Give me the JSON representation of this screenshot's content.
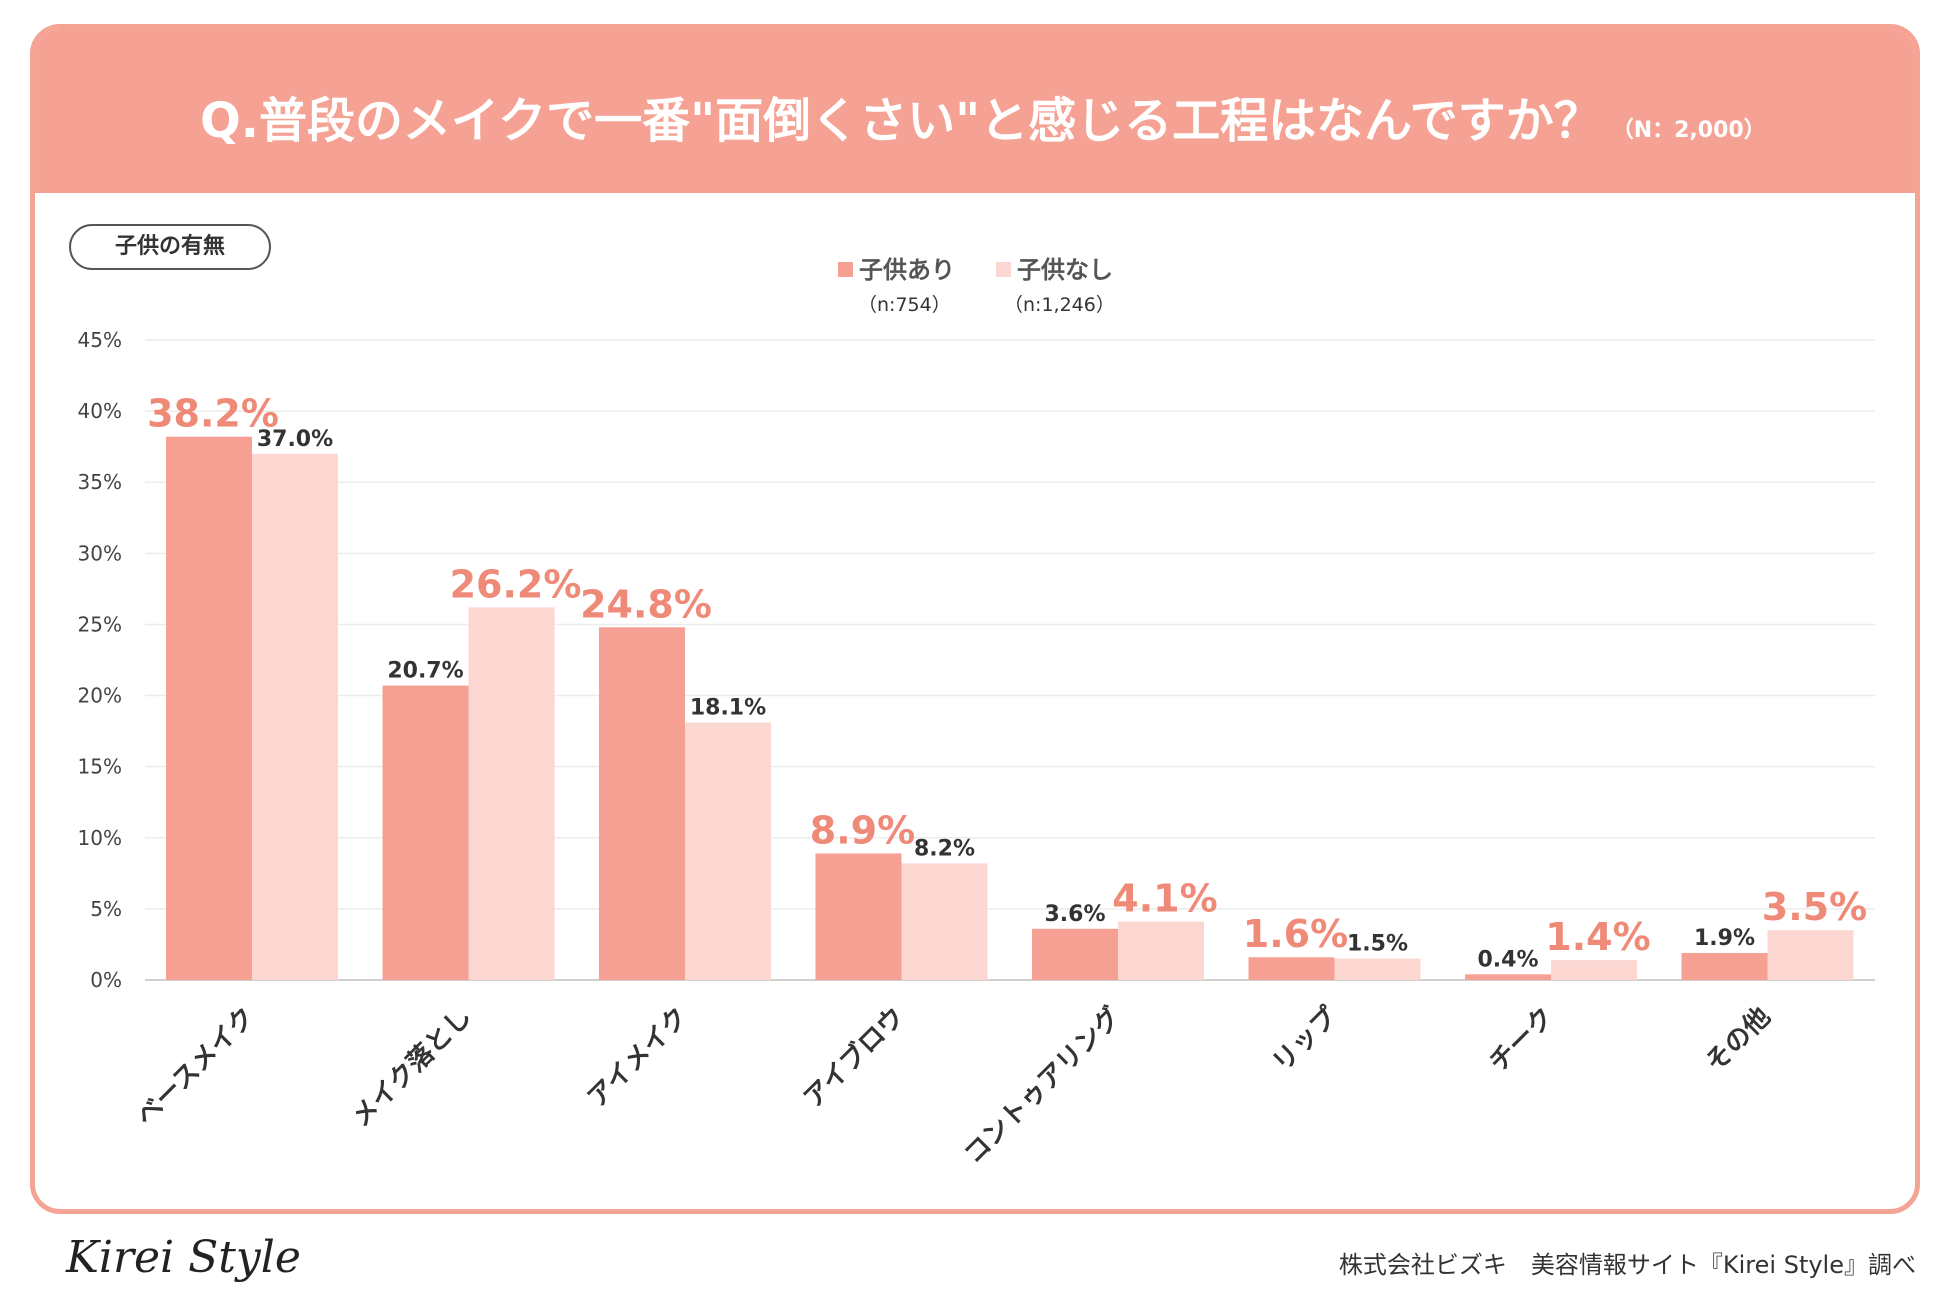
{
  "header": {
    "question": "Q.普段のメイクで一番\"面倒くさい\"と感じる工程はなんですか？",
    "sample_size": "（N：2,000）"
  },
  "filter_label": "子供の有無",
  "colors": {
    "series1": "#f5a092",
    "series2": "#fcd6d1",
    "highlight": "#f08a78",
    "header": "#f5a193"
  },
  "legend": [
    {
      "label": "子供あり",
      "n": "（n:754）"
    },
    {
      "label": "子供なし",
      "n": "（n:1,246）"
    }
  ],
  "chart_data": {
    "type": "bar",
    "title": "Q.普段のメイクで一番\"面倒くさい\"と感じる工程はなんですか？",
    "xlabel": "",
    "ylabel": "",
    "ylim": [
      0,
      45
    ],
    "yticks": [
      "0%",
      "5%",
      "10%",
      "15%",
      "20%",
      "25%",
      "30%",
      "35%",
      "40%",
      "45%"
    ],
    "categories": [
      "ベースメイク",
      "メイク落とし",
      "アイメイク",
      "アイブロウ",
      "コントゥアリング",
      "リップ",
      "チーク",
      "その他"
    ],
    "series": [
      {
        "name": "子供あり",
        "values": [
          38.2,
          20.7,
          24.8,
          8.9,
          3.6,
          1.6,
          0.4,
          1.9
        ],
        "labels": [
          "38.2%",
          "20.7%",
          "24.8%",
          "8.9%",
          "3.6%",
          "1.6%",
          "0.4%",
          "1.9%"
        ]
      },
      {
        "name": "子供なし",
        "values": [
          37.0,
          26.2,
          18.1,
          8.2,
          4.1,
          1.5,
          1.4,
          3.5
        ],
        "labels": [
          "37.0%",
          "26.2%",
          "18.1%",
          "8.2%",
          "4.1%",
          "1.5%",
          "1.4%",
          "3.5%"
        ]
      }
    ],
    "grid": true,
    "legend_position": "top-center"
  },
  "footer": {
    "logo": "Kirei Style",
    "credit": "株式会社ビズキ　美容情報サイト『Kirei Style』調べ"
  }
}
